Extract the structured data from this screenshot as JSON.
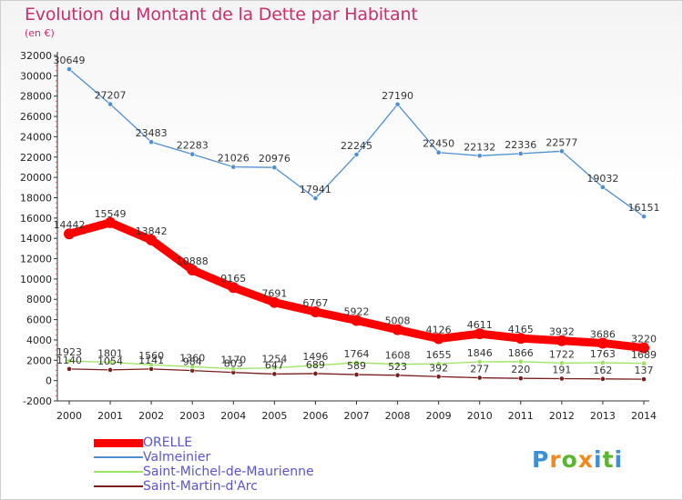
{
  "title": "Evolution du Montant de la Dette par Habitant",
  "subtitle": "(en €)",
  "brand": {
    "letters": [
      "P",
      "r",
      "o",
      "x",
      "i",
      "t",
      "i"
    ],
    "colors": [
      "#3e8fd8",
      "#f08a1c",
      "#5bb52f",
      "#f08a1c",
      "#3e8fd8",
      "#5bb52f",
      "#3e8fd8"
    ]
  },
  "chart_data": {
    "type": "line",
    "title": "Evolution du Montant de la Dette par Habitant",
    "ylabel": "(en €)",
    "xlabel": "",
    "x": [
      "2000",
      "2001",
      "2002",
      "2003",
      "2004",
      "2005",
      "2006",
      "2007",
      "2008",
      "2009",
      "2010",
      "2011",
      "2012",
      "2013",
      "2014"
    ],
    "ylim": [
      -2000,
      32000
    ],
    "yticks": [
      "-2000",
      "0",
      "2000",
      "4000",
      "6000",
      "8000",
      "10000",
      "12000",
      "14000",
      "16000",
      "18000",
      "20000",
      "22000",
      "24000",
      "26000",
      "28000",
      "30000",
      "32000"
    ],
    "grid": false,
    "legend_position": "bottom-left",
    "series": [
      {
        "name": "ORELLE",
        "color": "#ff0000",
        "values": [
          14442,
          15549,
          13842,
          10888,
          9165,
          7691,
          6767,
          5922,
          5008,
          4126,
          4611,
          4165,
          3932,
          3686,
          3220
        ]
      },
      {
        "name": "Valmeinier",
        "color": "#4d8fd2",
        "values": [
          30649,
          27207,
          23483,
          22283,
          21026,
          20976,
          17941,
          22245,
          27190,
          22450,
          22132,
          22336,
          22577,
          19032,
          16151
        ]
      },
      {
        "name": "Saint-Michel-de-Maurienne",
        "color": "#99e55f",
        "values": [
          1923,
          1801,
          1560,
          1360,
          1170,
          1254,
          1496,
          1764,
          1608,
          1655,
          1846,
          1866,
          1722,
          1763,
          1689
        ]
      },
      {
        "name": "Saint-Martin-d'Arc",
        "color": "#7a1d1d",
        "values": [
          1140,
          1054,
          1141,
          984,
          803,
          647,
          689,
          589,
          523,
          392,
          277,
          220,
          191,
          162,
          137
        ]
      }
    ]
  }
}
